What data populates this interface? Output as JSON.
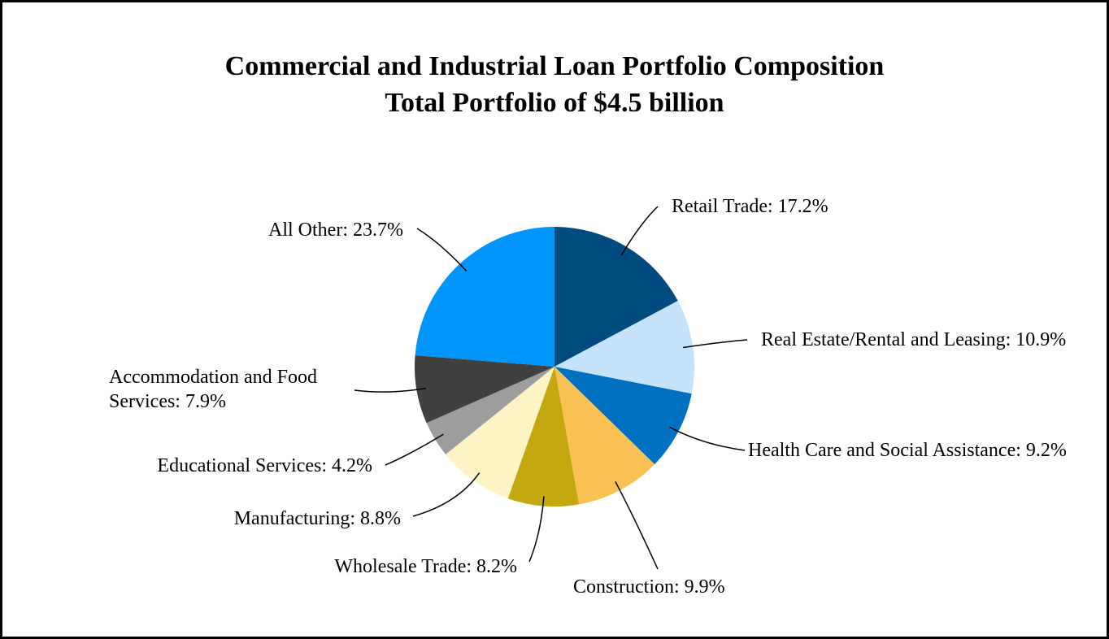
{
  "chart_data": {
    "type": "pie",
    "title": "Commercial and Industrial Loan Portfolio Composition",
    "subtitle": "Total Portfolio of $4.5 billion",
    "categories": [
      "Retail Trade: 17.2%",
      "Real Estate/Rental and Leasing: 10.9%",
      "Health Care and Social Assistance: 9.2%",
      "Construction: 9.9%",
      "Wholesale Trade: 8.2%",
      "Manufacturing: 8.8%",
      "Educational Services: 4.2%",
      "Accommodation and Food Services: 7.9%",
      "All Other: 23.7%"
    ],
    "values": [
      17.2,
      10.9,
      9.2,
      9.9,
      8.2,
      8.8,
      4.2,
      7.9,
      23.7
    ],
    "colors": [
      "#004b80",
      "#c5e3fb",
      "#0070c0",
      "#f9c154",
      "#c4a80f",
      "#fdf3c5",
      "#9d9d9d",
      "#404040",
      "#0095fa"
    ]
  }
}
